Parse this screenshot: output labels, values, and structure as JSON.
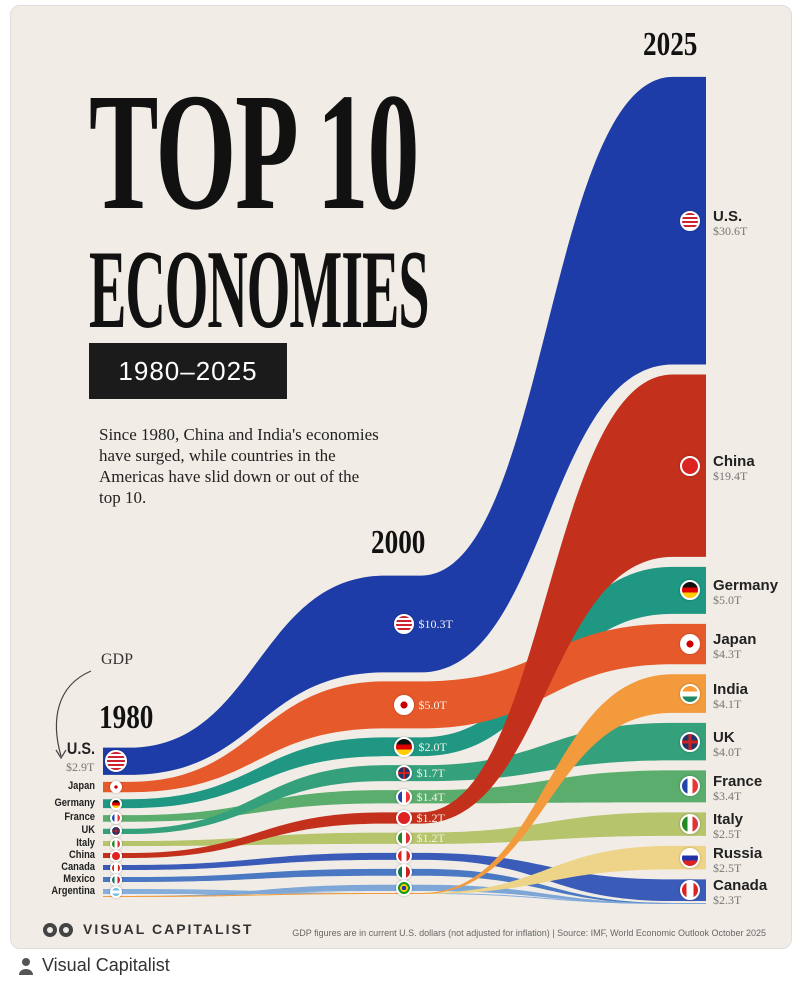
{
  "title_line1": "TOP 10",
  "title_line2": "ECONOMIES",
  "date_range": "1980–2025",
  "description": "Since 1980, China and India's economies have surged, while countries in the Americas have slid down or out of the top 10.",
  "gdp_annotation": "GDP",
  "footer_note": "GDP figures are in current U.S. dollars (not adjusted for inflation) | Source: IMF, World Economic Outlook October 2025",
  "brand": "VISUAL CAPITALIST",
  "attribution": "Visual Capitalist",
  "chart_data": {
    "type": "area",
    "subtype": "ranked ribbon (bump) chart",
    "years": [
      "1980",
      "2000",
      "2025"
    ],
    "unit": "USD trillions",
    "order": {
      "1980": [
        "U.S.",
        "Japan",
        "Germany",
        "France",
        "UK",
        "Italy",
        "China",
        "Canada",
        "Mexico",
        "Argentina"
      ],
      "2000": [
        "U.S.",
        "Japan",
        "Germany",
        "UK",
        "France",
        "China",
        "Italy",
        "Canada",
        "Mexico",
        "Brazil"
      ],
      "2025": [
        "U.S.",
        "China",
        "Germany",
        "Japan",
        "India",
        "UK",
        "France",
        "Italy",
        "Russia",
        "Canada"
      ]
    },
    "series": [
      {
        "name": "U.S.",
        "color": "#1e3ca8",
        "flag": "us",
        "values": [
          2.9,
          10.3,
          30.6
        ],
        "labels": [
          "$2.9T",
          "$10.3T",
          "$30.6T"
        ]
      },
      {
        "name": "China",
        "color": "#c3301c",
        "flag": "cn",
        "values": [
          0.3,
          1.2,
          19.4
        ],
        "labels": [
          "",
          "$1.2T",
          "$19.4T"
        ]
      },
      {
        "name": "Germany",
        "color": "#1f9782",
        "flag": "de",
        "values": [
          0.95,
          2.0,
          5.0
        ],
        "labels": [
          "",
          "$2.0T",
          "$5.0T"
        ]
      },
      {
        "name": "Japan",
        "color": "#e6592b",
        "flag": "jp",
        "values": [
          1.1,
          5.0,
          4.3
        ],
        "labels": [
          "",
          "$5.0T",
          "$4.3T"
        ]
      },
      {
        "name": "India",
        "color": "#f29a3c",
        "flag": "in",
        "values": [
          null,
          null,
          4.1
        ],
        "labels": [
          "",
          "",
          "$4.1T"
        ]
      },
      {
        "name": "UK",
        "color": "#35a07c",
        "flag": "uk",
        "values": [
          0.56,
          1.7,
          4.0
        ],
        "labels": [
          "",
          "$1.7T",
          "$4.0T"
        ]
      },
      {
        "name": "France",
        "color": "#5aad6c",
        "flag": "fr",
        "values": [
          0.7,
          1.4,
          3.4
        ],
        "labels": [
          "",
          "$1.4T",
          "$3.4T"
        ]
      },
      {
        "name": "Italy",
        "color": "#b6c46c",
        "flag": "it",
        "values": [
          0.48,
          1.2,
          2.5
        ],
        "labels": [
          "",
          "$1.2T",
          "$2.5T"
        ]
      },
      {
        "name": "Russia",
        "color": "#eed488",
        "flag": "ru",
        "values": [
          null,
          null,
          2.5
        ],
        "labels": [
          "",
          "",
          "$2.5T"
        ]
      },
      {
        "name": "Canada",
        "color": "#3a5cb8",
        "flag": "ca",
        "values": [
          0.27,
          0.74,
          2.3
        ],
        "labels": [
          "",
          "",
          ""
        ],
        "labels2025": "$2.3T"
      },
      {
        "name": "Mexico",
        "color": "#4a78c2",
        "flag": "mx",
        "values": [
          0.23,
          0.74,
          null
        ],
        "labels": [
          "",
          "",
          ""
        ]
      },
      {
        "name": "Argentina",
        "color": "#86aedb",
        "flag": "ar",
        "values": [
          0.21,
          null,
          null
        ],
        "labels": [
          "",
          "",
          ""
        ]
      },
      {
        "name": "Brazil",
        "color": "#7ea6d6",
        "flag": "br",
        "values": [
          null,
          0.66,
          null
        ],
        "labels": [
          "",
          "",
          ""
        ]
      }
    ]
  }
}
